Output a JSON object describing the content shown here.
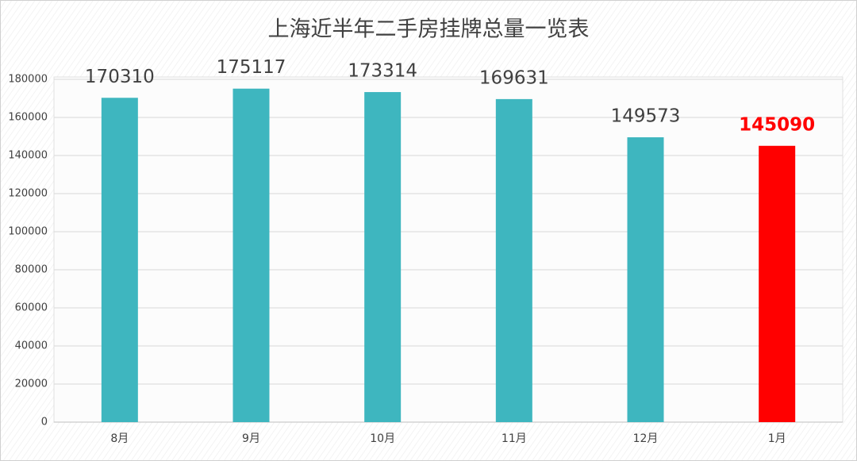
{
  "chart_data": {
    "type": "bar",
    "title": "上海近半年二手房挂牌总量一览表",
    "categories": [
      "8月",
      "9月",
      "10月",
      "11月",
      "12月",
      "1月"
    ],
    "values": [
      170310,
      175117,
      173314,
      169631,
      149573,
      145090
    ],
    "colors": [
      "#3eb6bf",
      "#3eb6bf",
      "#3eb6bf",
      "#3eb6bf",
      "#3eb6bf",
      "#ff0000"
    ],
    "ylim": [
      0,
      180000
    ],
    "yticks": [
      0,
      20000,
      40000,
      60000,
      80000,
      100000,
      120000,
      140000,
      160000,
      180000
    ],
    "grid": true
  }
}
